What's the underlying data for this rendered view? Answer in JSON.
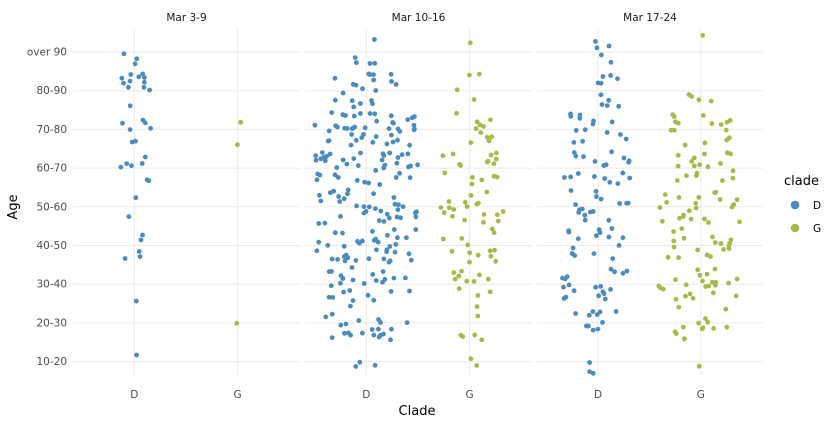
{
  "chart_data": {
    "type": "scatter",
    "subtype": "beeswarm-faceted",
    "xlabel": "Clade",
    "ylabel": "Age",
    "categories_x": [
      "D",
      "G"
    ],
    "categories_y": [
      "10-20",
      "20-30",
      "30-40",
      "40-50",
      "50-60",
      "60-70",
      "70-80",
      "80-90",
      "over 90"
    ],
    "grid": true,
    "legend": {
      "title": "clade",
      "placement": "right",
      "entries": [
        {
          "label": "D",
          "color": "#4b8bbe"
        },
        {
          "label": "G",
          "color": "#a8b94a"
        }
      ]
    },
    "facets": [
      {
        "label": "Mar 3-9",
        "counts": {
          "D": {
            "10-20": 1,
            "20-30": 0,
            "30-40": 1,
            "40-50": 5,
            "50-60": 2,
            "60-70": 7,
            "70-80": 7,
            "80-90": 12,
            "over 90": 3
          },
          "G": {
            "10-20": 0,
            "20-30": 1,
            "30-40": 0,
            "40-50": 0,
            "50-60": 0,
            "60-70": 0,
            "70-80": 2,
            "80-90": 0,
            "over 90": 0
          }
        }
      },
      {
        "label": "Mar 10-16",
        "counts": {
          "D": {
            "10-20": 3,
            "20-30": 22,
            "30-40": 25,
            "40-50": 38,
            "50-60": 34,
            "60-70": 40,
            "70-80": 44,
            "80-90": 19,
            "over 90": 5
          },
          "G": {
            "10-20": 2,
            "20-30": 6,
            "30-40": 11,
            "40-50": 13,
            "50-60": 18,
            "60-70": 16,
            "70-80": 11,
            "80-90": 4,
            "over 90": 1
          }
        }
      },
      {
        "label": "Mar 17-24",
        "counts": {
          "D": {
            "10-20": 3,
            "20-30": 11,
            "30-40": 19,
            "40-50": 15,
            "50-60": 16,
            "60-70": 19,
            "70-80": 14,
            "80-90": 10,
            "over 90": 5
          },
          "G": {
            "10-20": 1,
            "20-30": 14,
            "30-40": 23,
            "40-50": 18,
            "50-60": 22,
            "60-70": 18,
            "70-80": 16,
            "80-90": 4,
            "over 90": 1
          }
        }
      }
    ]
  }
}
